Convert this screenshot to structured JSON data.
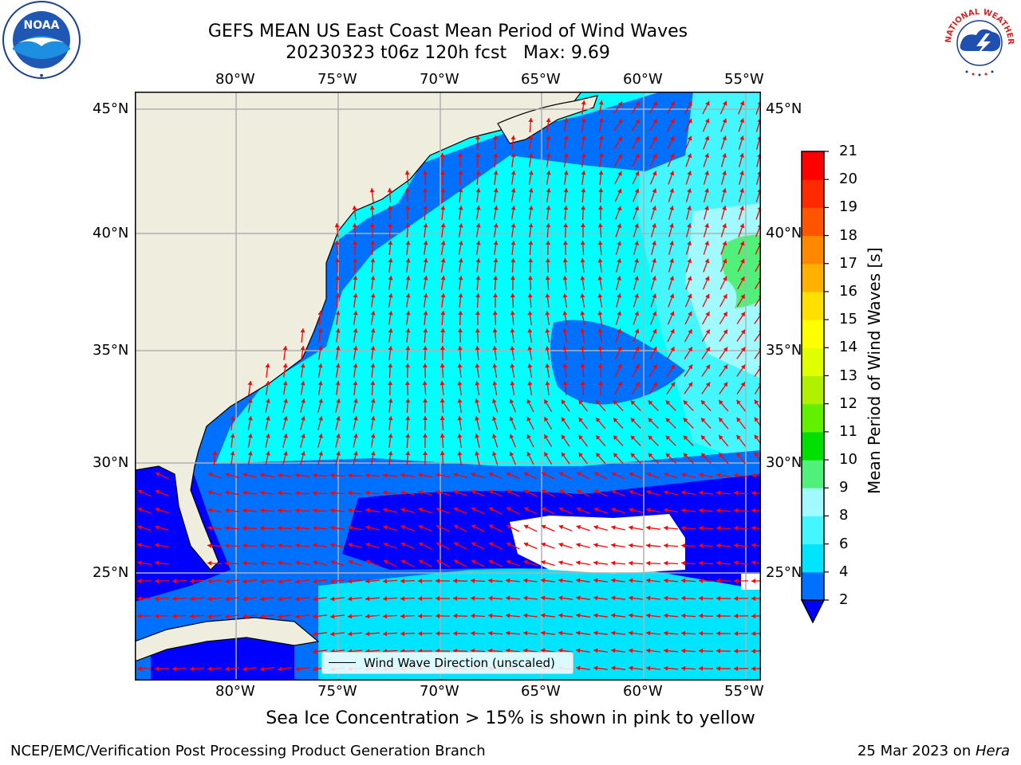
{
  "title": {
    "line1": "GEFS MEAN US East Coast Mean Period of Wind Waves",
    "line2": "20230323 t06z 120h fcst   Max: 9.69"
  },
  "map": {
    "lon_labels": [
      "80°W",
      "75°W",
      "70°W",
      "65°W",
      "60°W",
      "55°W"
    ],
    "lat_labels": [
      "45°N",
      "40°N",
      "35°N",
      "30°N",
      "25°N"
    ],
    "land_color": "#efedde",
    "grid_color": "#b0b0b0",
    "arrow_color": "#ff0000"
  },
  "legend": {
    "label": "Wind Wave Direction (unscaled)"
  },
  "colorbar": {
    "title": "Mean Period of Wind Waves [s]",
    "tick_labels": [
      "2",
      "4",
      "6",
      "8",
      "9",
      "10",
      "11",
      "12",
      "13",
      "14",
      "15",
      "16",
      "17",
      "18",
      "19",
      "20",
      "21"
    ],
    "colors": [
      "#0070ff",
      "#00e5ff",
      "#44f6ff",
      "#a0faff",
      "#50f07a",
      "#00e000",
      "#60f000",
      "#b0f000",
      "#e0ff00",
      "#ffff00",
      "#ffe000",
      "#ffb000",
      "#ff8800",
      "#ff5500",
      "#ff2a00",
      "#ff0000"
    ],
    "under_color": "#0000ff"
  },
  "footer": {
    "note": "Sea Ice Concentration > 15% is shown in pink to yellow",
    "credit_left": "NCEP/EMC/Verification Post Processing Product Generation Branch",
    "date": "25 Mar 2023 on ",
    "host": "Hera"
  },
  "logos": {
    "noaa": "NOAA",
    "nws": "NATIONAL WEATHER SERVICE"
  }
}
